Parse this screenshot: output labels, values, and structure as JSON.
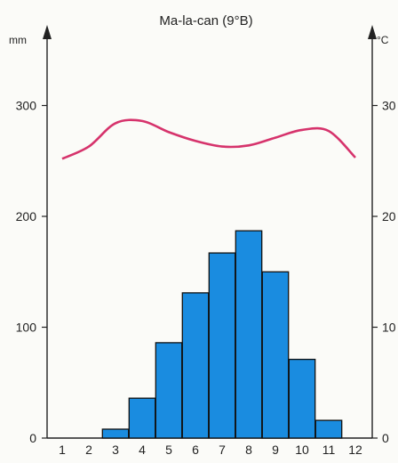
{
  "chart_data": {
    "type": "bar+line",
    "title": "Ma-la-can (9°B)",
    "x": {
      "categories": [
        "1",
        "2",
        "3",
        "4",
        "5",
        "6",
        "7",
        "8",
        "9",
        "10",
        "11",
        "12"
      ]
    },
    "y_left": {
      "unit": "mm",
      "range": [
        0,
        340
      ],
      "ticks": [
        0,
        100,
        200,
        300
      ]
    },
    "y_right": {
      "unit": "°C",
      "range": [
        0,
        34
      ],
      "tick_labels": [
        "0",
        "10",
        "20",
        "30"
      ]
    },
    "series": [
      {
        "kind": "bar",
        "axis": "left",
        "color": "#1a8ce0",
        "values": [
          0,
          0,
          8,
          36,
          86,
          131,
          167,
          187,
          150,
          71,
          16,
          0
        ]
      },
      {
        "kind": "line",
        "axis": "right",
        "color": "#d6336c",
        "values": [
          25.2,
          26.3,
          28.4,
          28.6,
          27.6,
          26.8,
          26.3,
          26.4,
          27.1,
          27.8,
          27.7,
          25.3
        ]
      }
    ],
    "grid": false,
    "legend": "none"
  }
}
